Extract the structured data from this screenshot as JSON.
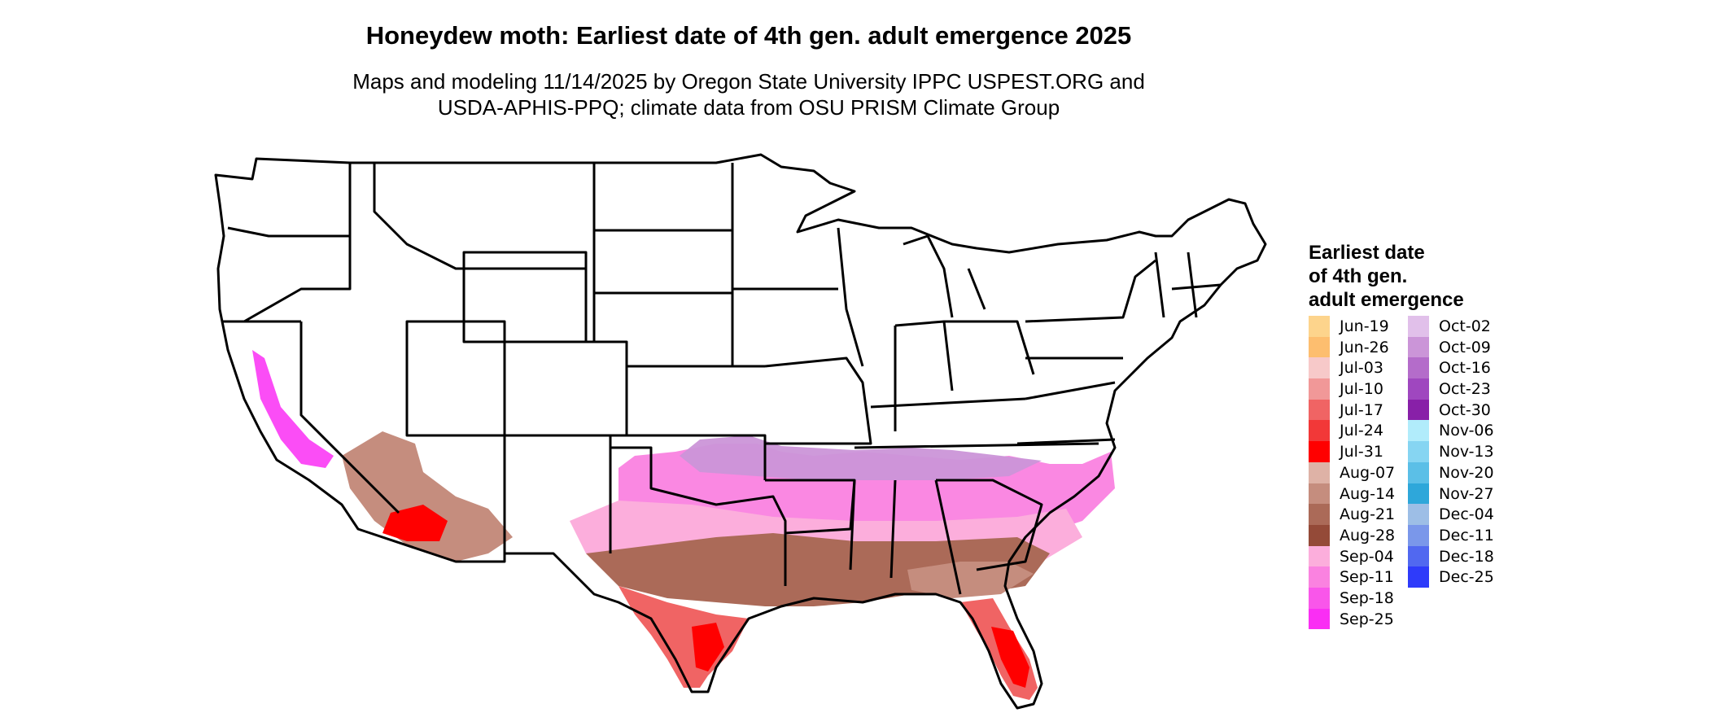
{
  "title": "Honeydew moth: Earliest date of 4th gen. adult emergence 2025",
  "subtitle_lines": [
    "Maps and modeling 11/14/2025 by Oregon State University IPPC USPEST.ORG and",
    "USDA-APHIS-PPQ; climate data from OSU PRISM Climate Group"
  ],
  "legend": {
    "title_lines": [
      "Earliest date",
      "of 4th gen.",
      "adult emergence"
    ],
    "items": [
      {
        "label": "Jun-19",
        "color": "#FDD48C"
      },
      {
        "label": "Jun-26",
        "color": "#FDBE6F"
      },
      {
        "label": "Jul-03",
        "color": "#F7C9C9"
      },
      {
        "label": "Jul-10",
        "color": "#F19898"
      },
      {
        "label": "Jul-17",
        "color": "#F06464"
      },
      {
        "label": "Jul-24",
        "color": "#F23838"
      },
      {
        "label": "Jul-31",
        "color": "#FF0000"
      },
      {
        "label": "Aug-07",
        "color": "#DEB2A6"
      },
      {
        "label": "Aug-14",
        "color": "#C58D7E"
      },
      {
        "label": "Aug-21",
        "color": "#AB6A58"
      },
      {
        "label": "Aug-28",
        "color": "#944A38"
      },
      {
        "label": "Sep-04",
        "color": "#FCAEDC"
      },
      {
        "label": "Sep-11",
        "color": "#FA82E0"
      },
      {
        "label": "Sep-18",
        "color": "#F956EA"
      },
      {
        "label": "Sep-25",
        "color": "#FA2EF4"
      },
      {
        "label": "Oct-02",
        "color": "#E1C0EA"
      },
      {
        "label": "Oct-09",
        "color": "#CB95D8"
      },
      {
        "label": "Oct-16",
        "color": "#B46CCA"
      },
      {
        "label": "Oct-23",
        "color": "#9F47BF"
      },
      {
        "label": "Oct-30",
        "color": "#8820A8"
      },
      {
        "label": "Nov-06",
        "color": "#B1ECFB"
      },
      {
        "label": "Nov-13",
        "color": "#86D5F2"
      },
      {
        "label": "Nov-20",
        "color": "#5BBFE7"
      },
      {
        "label": "Nov-27",
        "color": "#2EA7DA"
      },
      {
        "label": "Dec-04",
        "color": "#9DBEE6"
      },
      {
        "label": "Dec-11",
        "color": "#7A97EA"
      },
      {
        "label": "Dec-18",
        "color": "#5168F0"
      },
      {
        "label": "Dec-25",
        "color": "#2E3BFA"
      }
    ]
  }
}
